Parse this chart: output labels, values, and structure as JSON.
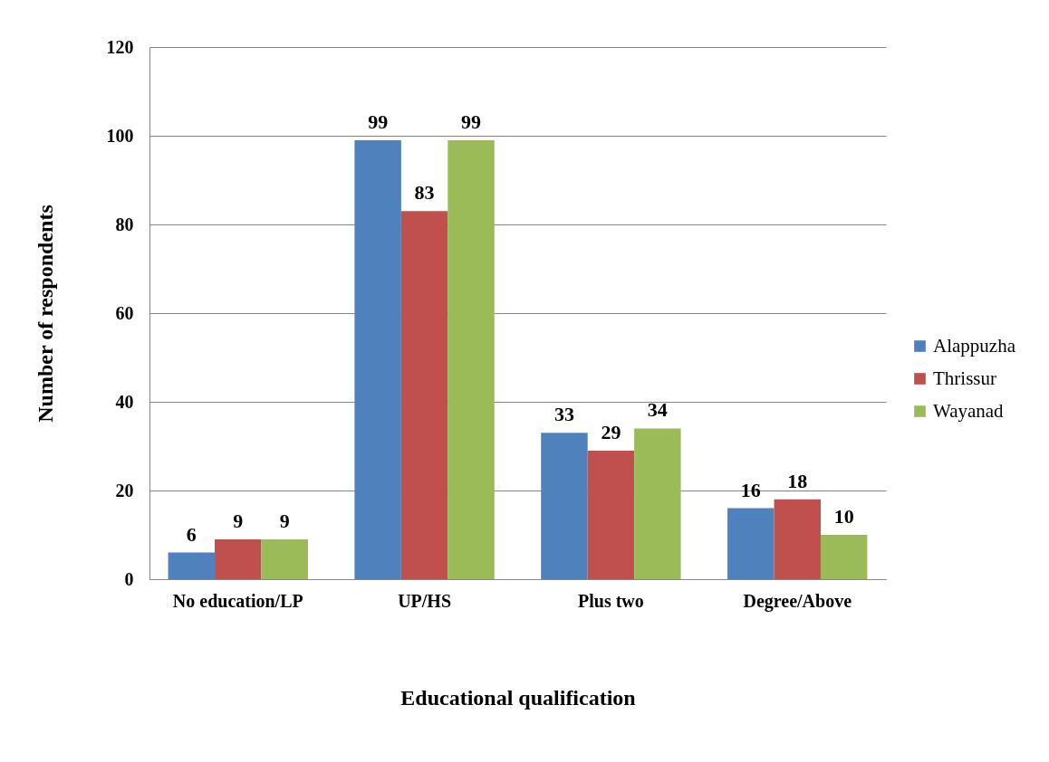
{
  "chart_data": {
    "type": "bar",
    "xlabel": "Educational qualification",
    "ylabel": "Number of respondents",
    "categories": [
      "No education/LP",
      "UP/HS",
      "Plus two",
      "Degree/Above"
    ],
    "series": [
      {
        "name": "Alappuzha",
        "color": "#4f81bd",
        "values": [
          6,
          99,
          33,
          16
        ]
      },
      {
        "name": "Thrissur",
        "color": "#c0504d",
        "values": [
          9,
          83,
          29,
          18
        ]
      },
      {
        "name": "Wayanad",
        "color": "#9bbb59",
        "values": [
          9,
          99,
          34,
          10
        ]
      }
    ],
    "ylim": [
      0,
      120
    ],
    "yticks": [
      0,
      20,
      40,
      60,
      80,
      100,
      120
    ],
    "grid": "y",
    "legend": "right",
    "data_labels": true
  }
}
